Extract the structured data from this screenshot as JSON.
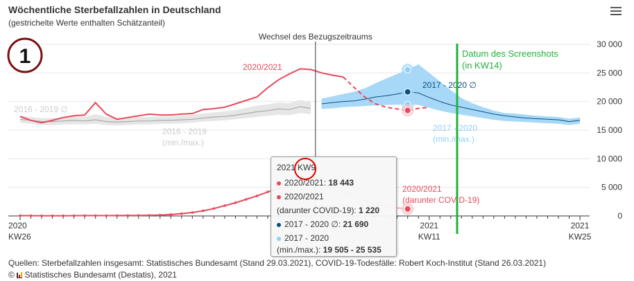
{
  "header": {
    "title": "Wöchentliche Sterbefallzahlen in Deutschland",
    "subtitle": "(gestrichelte Werte enthalten Schätzanteil)",
    "menu_icon": "hamburger-menu-icon"
  },
  "annotation": {
    "number": "1",
    "screenshot_label_1": "Datum des Screenshots",
    "screenshot_label_2": "(in KW14)",
    "screenshot_color": "#1fb33a",
    "highlight_color": "#e00000"
  },
  "chart_data": {
    "type": "line",
    "title": "Wöchentliche Sterbefallzahlen in Deutschland",
    "subtitle": "(gestrichelte Werte enthalten Schätzanteil)",
    "ylim": [
      0,
      30000
    ],
    "yticks": [
      0,
      5000,
      10000,
      15000,
      20000,
      25000,
      30000
    ],
    "ytick_labels": [
      "0",
      "5 000",
      "10 000",
      "15 000",
      "20 000",
      "25 000",
      "30 000"
    ],
    "x_ticks": [
      {
        "index": 0,
        "l1": "2020",
        "l2": "KW26"
      },
      {
        "index": 38,
        "l1": "2021",
        "l2": "KW11"
      },
      {
        "index": 52,
        "l1": "2021",
        "l2": "KW25"
      }
    ],
    "x_range": [
      0,
      52
    ],
    "period_change_label": "Wechsel des Bezugszeitraums",
    "period_change_index": 27.5,
    "screenshot_index": 40.2,
    "series": [
      {
        "name": "2020/2021",
        "color": "#e8485a",
        "start": 0,
        "dashed_from": 30,
        "values": [
          17400,
          16700,
          16300,
          16700,
          17200,
          17500,
          17650,
          19800,
          17800,
          16900,
          17200,
          17500,
          17800,
          17650,
          17650,
          17800,
          17900,
          18600,
          18750,
          19000,
          19600,
          20200,
          20800,
          22400,
          23800,
          24800,
          25700,
          25600,
          25000,
          24600,
          24300,
          22500,
          20800,
          19600,
          19000,
          18700,
          18443,
          18800,
          19000
        ]
      },
      {
        "name": "2016 - 2019 ∅",
        "color": "#bbbbbb",
        "start": 0,
        "values": [
          16900,
          16700,
          16500,
          16500,
          16600,
          16700,
          16600,
          16800,
          16500,
          16400,
          16500,
          16600,
          16600,
          16700,
          16700,
          16800,
          16900,
          17100,
          17300,
          17400,
          17600,
          17900,
          18200,
          18400,
          18700,
          18600,
          19100,
          18800
        ]
      },
      {
        "name": "2016 - 2019 (min./max.)",
        "color": "#e6e6e6",
        "start": 0,
        "low": [
          16300,
          16100,
          15900,
          15900,
          16000,
          16000,
          16000,
          16100,
          15900,
          15800,
          15900,
          16000,
          16000,
          16100,
          16100,
          16200,
          16300,
          16500,
          16600,
          16700,
          16900,
          17100,
          17300,
          17500,
          17700,
          17600,
          18000,
          17800
        ],
        "high": [
          17500,
          17300,
          17100,
          17100,
          17200,
          17400,
          17300,
          17800,
          17300,
          17100,
          17200,
          17300,
          17300,
          17400,
          17400,
          17500,
          17700,
          17900,
          18100,
          18300,
          18500,
          18900,
          19300,
          19500,
          19800,
          19700,
          20300,
          19900
        ]
      },
      {
        "name": "2017 - 2020 ∅",
        "color": "#0a4f7a",
        "start": 28,
        "values": [
          19600,
          19800,
          20000,
          20100,
          20400,
          20800,
          21000,
          21300,
          21690,
          21500,
          20700,
          20000,
          19400,
          19000,
          18600,
          18200,
          17800,
          17500,
          17300,
          17100,
          17000,
          16900,
          16800,
          16500,
          16700
        ]
      },
      {
        "name": "2017 - 2020 (min./max.)",
        "color": "#a8d8f8",
        "start": 28,
        "low": [
          18700,
          18800,
          19000,
          19100,
          19200,
          19300,
          19400,
          19450,
          19505,
          19400,
          18900,
          18400,
          18000,
          17700,
          17400,
          17100,
          16800,
          16600,
          16500,
          16400,
          16300,
          16200,
          16100,
          15900,
          16100
        ],
        "high": [
          20500,
          20900,
          21300,
          21700,
          22300,
          23200,
          24000,
          24800,
          25535,
          26500,
          25000,
          23500,
          22000,
          20600,
          19700,
          19000,
          18400,
          18000,
          17900,
          17700,
          17500,
          17400,
          17300,
          17000,
          17200
        ]
      },
      {
        "name": "2020/2021 (darunter COVID-19)",
        "color": "#e8485a",
        "start": 0,
        "values": [
          60,
          50,
          40,
          40,
          40,
          50,
          60,
          60,
          60,
          70,
          80,
          100,
          120,
          160,
          250,
          400,
          600,
          900,
          1300,
          1800,
          2300,
          2900,
          3500,
          4200,
          4800,
          5200,
          5500,
          5600,
          5300,
          4800,
          4100,
          3400,
          2700,
          2100,
          1700,
          1400,
          1220
        ]
      }
    ],
    "series_labels": {
      "s2021": "2020/2021",
      "avg1619": "2016 - 2019 ∅",
      "band1619_1": "2016 - 2019",
      "band1619_2": "(min./max.)",
      "avg1720": "2017 - 2020 ∅",
      "band1720_1": "2017 - 2020",
      "band1720_2": "(min./max.)",
      "covid_1": "2020/2021",
      "covid_2": "(darunter COVID-19)"
    }
  },
  "tooltip": {
    "heading_year": "2021",
    "heading_week": "KW9",
    "l1_label": "2020/2021: ",
    "l1_value": "18 443",
    "l2_label": "2020/2021",
    "l3_label": "(darunter COVID-19): ",
    "l3_value": "1 220",
    "l4_label": "2017 - 2020 ∅: ",
    "l4_value": "21 690",
    "l5_label": "2017 - 2020",
    "l6_label": "(min./max.): ",
    "l6_value": "19 505 - 25 535"
  },
  "footer": {
    "source": "Quellen: Sterbefallzahlen insgesamt: Statistisches Bundesamt (Stand 29.03.2021), COVID-19-Todesfälle: Robert Koch-Institut (Stand 26.03.2021)",
    "credit": "Statistisches Bundesamt (Destatis), 2021",
    "copyright": "©"
  }
}
